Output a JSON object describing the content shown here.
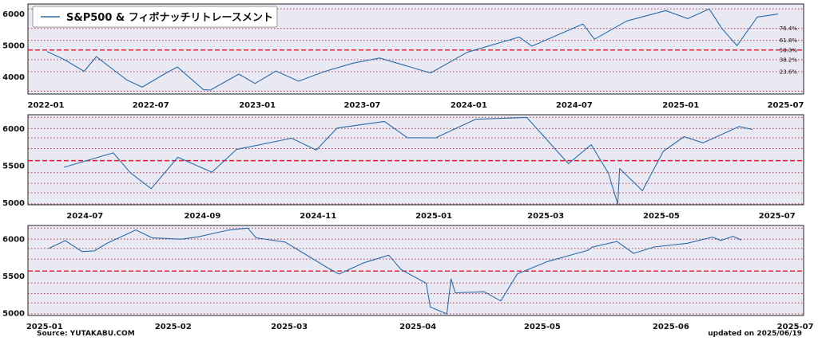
{
  "chart_data": [
    {
      "type": "line",
      "legend": "S&P500 & フィボナッチリトレースメント",
      "legend_position": "top-left",
      "x_ticks": [
        "2022-01",
        "2022-07",
        "2023-01",
        "2023-07",
        "2024-01",
        "2024-07",
        "2025-01",
        "2025-07"
      ],
      "x_range": [
        "2021-12-01",
        "2025-08-01"
      ],
      "y_ticks": [
        4000,
        5000,
        6000
      ],
      "y_range": [
        3450,
        6300
      ],
      "fib_levels": [
        {
          "value": 6144,
          "label": ""
        },
        {
          "value": 5526,
          "label": "76.4%"
        },
        {
          "value": 5147,
          "label": "61.8%"
        },
        {
          "value": 4841,
          "label": "50.0%",
          "dashed": true
        },
        {
          "value": 4535,
          "label": "38.2%"
        },
        {
          "value": 4157,
          "label": "23.6%"
        },
        {
          "value": 3538,
          "label": ""
        }
      ],
      "series": [
        {
          "x": [
            "2022-01-03",
            "2022-02-01",
            "2022-03-08",
            "2022-03-29",
            "2022-05-02",
            "2022-05-20",
            "2022-06-16",
            "2022-07-29",
            "2022-08-16",
            "2022-09-30",
            "2022-10-12",
            "2022-11-30",
            "2022-12-28",
            "2023-02-02",
            "2023-03-13",
            "2023-04-28",
            "2023-06-15",
            "2023-07-31",
            "2023-10-27",
            "2023-12-29",
            "2024-03-28",
            "2024-04-19",
            "2024-07-16",
            "2024-08-05",
            "2024-09-30",
            "2024-12-06",
            "2025-01-13",
            "2025-02-19",
            "2025-03-13",
            "2025-04-08",
            "2025-05-13",
            "2025-06-18"
          ],
          "y": [
            4797,
            4546,
            4170,
            4632,
            4155,
            3901,
            3666,
            4130,
            4305,
            3585,
            3577,
            4080,
            3783,
            4179,
            3855,
            4169,
            4425,
            4589,
            4117,
            4770,
            5254,
            4967,
            5667,
            5186,
            5762,
            6090,
            5836,
            6144,
            5521,
            4982,
            5886,
            5982
          ]
        }
      ]
    },
    {
      "type": "line",
      "x_ticks": [
        "2024-07",
        "2024-09",
        "2024-11",
        "2025-01",
        "2025-03",
        "2025-05",
        "2025-07"
      ],
      "x_range": [
        "2024-06-01",
        "2025-07-15"
      ],
      "y_ticks": [
        5000,
        5500,
        6000
      ],
      "y_range": [
        4970,
        6180
      ],
      "fib_levels": [
        {
          "value": 6144,
          "label": ""
        },
        {
          "value": 5995,
          "label": ""
        },
        {
          "value": 5869,
          "label": ""
        },
        {
          "value": 5725,
          "label": ""
        },
        {
          "value": 5563,
          "label": "",
          "dashed": true
        },
        {
          "value": 5401,
          "label": ""
        },
        {
          "value": 5257,
          "label": ""
        },
        {
          "value": 5131,
          "label": ""
        },
        {
          "value": 4982,
          "label": ""
        }
      ],
      "series": [
        {
          "x": [
            "2024-06-20",
            "2024-07-16",
            "2024-07-25",
            "2024-08-05",
            "2024-08-19",
            "2024-09-06",
            "2024-09-19",
            "2024-10-18",
            "2024-10-31",
            "2024-11-11",
            "2024-12-06",
            "2024-12-18",
            "2025-01-02",
            "2025-01-23",
            "2025-02-19",
            "2025-03-13",
            "2025-03-25",
            "2025-04-03",
            "2025-04-08",
            "2025-04-09",
            "2025-04-21",
            "2025-05-02",
            "2025-05-13",
            "2025-05-23",
            "2025-06-11",
            "2025-06-18"
          ],
          "y": [
            5474,
            5667,
            5400,
            5186,
            5608,
            5408,
            5713,
            5864,
            5705,
            6001,
            6090,
            5872,
            5869,
            6119,
            6144,
            5521,
            5777,
            5397,
            4982,
            5457,
            5158,
            5687,
            5886,
            5802,
            6022,
            5982
          ]
        }
      ]
    },
    {
      "type": "line",
      "x_ticks": [
        "2025-01",
        "2025-02",
        "2025-03",
        "2025-04",
        "2025-05",
        "2025-06",
        "2025-07"
      ],
      "x_range": [
        "2024-12-28",
        "2025-07-03"
      ],
      "y_ticks": [
        5000,
        5500,
        6000
      ],
      "y_range": [
        4960,
        6180
      ],
      "fib_levels": [
        {
          "value": 6144,
          "label": ""
        },
        {
          "value": 5995,
          "label": ""
        },
        {
          "value": 5869,
          "label": ""
        },
        {
          "value": 5725,
          "label": ""
        },
        {
          "value": 5563,
          "label": "",
          "dashed": true
        },
        {
          "value": 5401,
          "label": ""
        },
        {
          "value": 5257,
          "label": ""
        },
        {
          "value": 5131,
          "label": ""
        },
        {
          "value": 4982,
          "label": ""
        }
      ],
      "series": [
        {
          "x": [
            "2025-01-02",
            "2025-01-06",
            "2025-01-10",
            "2025-01-13",
            "2025-01-16",
            "2025-01-23",
            "2025-01-27",
            "2025-02-03",
            "2025-02-07",
            "2025-02-14",
            "2025-02-19",
            "2025-02-21",
            "2025-02-28",
            "2025-03-10",
            "2025-03-13",
            "2025-03-19",
            "2025-03-25",
            "2025-03-28",
            "2025-04-03",
            "2025-04-04",
            "2025-04-08",
            "2025-04-09",
            "2025-04-10",
            "2025-04-17",
            "2025-04-21",
            "2025-04-25",
            "2025-05-02",
            "2025-05-12",
            "2025-05-13",
            "2025-05-19",
            "2025-05-23",
            "2025-05-28",
            "2025-06-05",
            "2025-06-11",
            "2025-06-13",
            "2025-06-16",
            "2025-06-18"
          ],
          "y": [
            5869,
            5975,
            5827,
            5836,
            5937,
            6119,
            6012,
            5994,
            6026,
            6114,
            6144,
            6013,
            5955,
            5614,
            5521,
            5675,
            5777,
            5581,
            5397,
            5074,
            4982,
            5457,
            5268,
            5282,
            5158,
            5525,
            5687,
            5844,
            5886,
            5963,
            5802,
            5889,
            5939,
            6022,
            5977,
            6033,
            5982
          ]
        }
      ]
    }
  ],
  "footer": {
    "source": "Source: YUTAKABU.COM",
    "updated": "updated on 2025/06/19"
  }
}
